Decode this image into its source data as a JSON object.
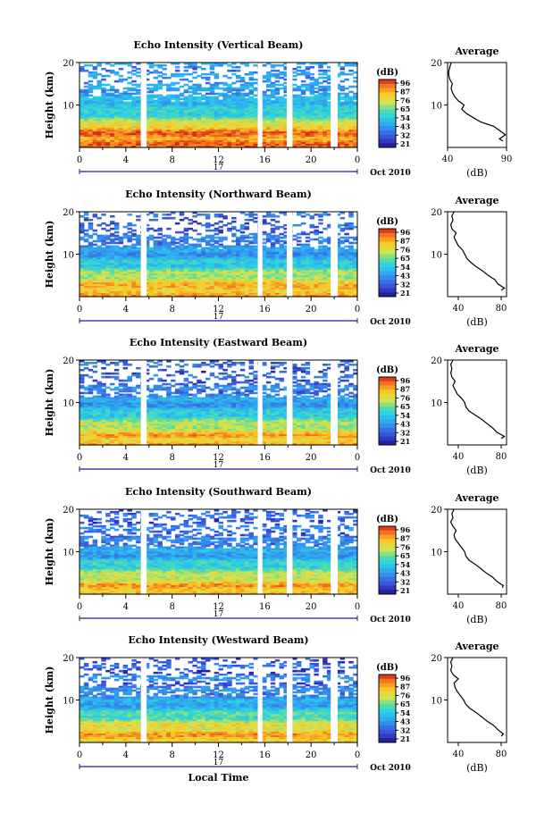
{
  "chart_data": [
    {
      "type": "heatmap",
      "title": "Echo Intensity (Vertical Beam)",
      "ylabel": "Height (km)",
      "ylim": [
        0,
        20
      ],
      "yticks": [
        "20",
        "10"
      ],
      "xlim": [
        0,
        24
      ],
      "xticks": [
        "0",
        "4",
        "8",
        "12",
        "16",
        "20",
        "0"
      ],
      "day_label": "17",
      "date_label": "Oct 2010",
      "colorbar": {
        "unit": "(dB)",
        "ticks": [
          "96",
          "87",
          "76",
          "65",
          "54",
          "43",
          "32",
          "21"
        ]
      },
      "data_gaps_hours": [
        [
          5.3,
          5.8
        ],
        [
          15.4,
          15.8
        ],
        [
          17.9,
          18.4
        ],
        [
          21.7,
          22.3
        ]
      ],
      "average": {
        "title": "Average",
        "xlabel": "(dB)",
        "xticks": [
          "40",
          "90"
        ],
        "xlim": [
          40,
          90
        ],
        "height_km": [
          1.5,
          2,
          3,
          4,
          5,
          6,
          7,
          8,
          9,
          10,
          11,
          12,
          13,
          14,
          15,
          16,
          17,
          18,
          19,
          20
        ],
        "value_db": [
          87,
          84,
          89,
          84,
          79,
          68,
          62,
          56,
          52,
          54,
          49,
          46,
          44,
          43,
          44,
          42,
          41,
          41,
          42,
          43
        ]
      }
    },
    {
      "type": "heatmap",
      "title": "Echo Intensity (Northward Beam)",
      "ylabel": "Height (km)",
      "ylim": [
        0,
        20
      ],
      "yticks": [
        "20",
        "10"
      ],
      "xlim": [
        0,
        24
      ],
      "xticks": [
        "0",
        "4",
        "8",
        "12",
        "16",
        "20",
        "0"
      ],
      "day_label": "17",
      "date_label": "Oct 2010",
      "colorbar": {
        "unit": "(dB)",
        "ticks": [
          "96",
          "87",
          "76",
          "65",
          "54",
          "43",
          "32",
          "21"
        ]
      },
      "data_gaps_hours": [
        [
          5.3,
          5.8
        ],
        [
          15.4,
          15.8
        ],
        [
          17.9,
          18.4
        ],
        [
          21.7,
          22.3
        ]
      ],
      "average": {
        "title": "Average",
        "xlabel": "(dB)",
        "xticks": [
          "40",
          "80"
        ],
        "xlim": [
          30,
          85
        ],
        "height_km": [
          1.5,
          2,
          3,
          4,
          5,
          6,
          7,
          8,
          9,
          10,
          11,
          12,
          13,
          14,
          15,
          16,
          17,
          18,
          19,
          20
        ],
        "value_db": [
          80,
          83,
          77,
          74,
          68,
          63,
          57,
          52,
          48,
          46,
          44,
          40,
          38,
          36,
          38,
          34,
          33,
          35,
          34,
          36
        ]
      }
    },
    {
      "type": "heatmap",
      "title": "Echo Intensity (Eastward Beam)",
      "ylabel": "Height (km)",
      "ylim": [
        0,
        20
      ],
      "yticks": [
        "20",
        "10"
      ],
      "xlim": [
        0,
        24
      ],
      "xticks": [
        "0",
        "4",
        "8",
        "12",
        "16",
        "20",
        "0"
      ],
      "day_label": "17",
      "date_label": "Oct 2010",
      "colorbar": {
        "unit": "(dB)",
        "ticks": [
          "96",
          "87",
          "76",
          "65",
          "54",
          "43",
          "32",
          "21"
        ]
      },
      "data_gaps_hours": [
        [
          5.3,
          5.8
        ],
        [
          15.4,
          15.8
        ],
        [
          17.9,
          18.4
        ],
        [
          21.7,
          22.3
        ]
      ],
      "average": {
        "title": "Average",
        "xlabel": "(dB)",
        "xticks": [
          "40",
          "80"
        ],
        "xlim": [
          30,
          85
        ],
        "height_km": [
          1.5,
          2,
          3,
          4,
          5,
          6,
          7,
          8,
          9,
          10,
          11,
          12,
          13,
          14,
          15,
          16,
          17,
          18,
          19,
          20
        ],
        "value_db": [
          80,
          83,
          76,
          72,
          67,
          62,
          56,
          50,
          47,
          46,
          43,
          39,
          37,
          35,
          37,
          34,
          33,
          34,
          33,
          35
        ]
      }
    },
    {
      "type": "heatmap",
      "title": "Echo Intensity (Southward Beam)",
      "ylabel": "Height (km)",
      "ylim": [
        0,
        20
      ],
      "yticks": [
        "20",
        "10"
      ],
      "xlim": [
        0,
        24
      ],
      "xticks": [
        "0",
        "4",
        "8",
        "12",
        "16",
        "20",
        "0"
      ],
      "day_label": "17",
      "date_label": "Oct 2010",
      "colorbar": {
        "unit": "(dB)",
        "ticks": [
          "96",
          "87",
          "76",
          "65",
          "54",
          "43",
          "32",
          "21"
        ]
      },
      "data_gaps_hours": [
        [
          5.3,
          5.8
        ],
        [
          15.4,
          15.8
        ],
        [
          17.9,
          18.4
        ],
        [
          21.7,
          22.3
        ]
      ],
      "average": {
        "title": "Average",
        "xlabel": "(dB)",
        "xticks": [
          "40",
          "80"
        ],
        "xlim": [
          30,
          85
        ],
        "height_km": [
          1.5,
          2,
          3,
          4,
          5,
          6,
          7,
          8,
          9,
          10,
          11,
          12,
          13,
          14,
          15,
          16,
          17,
          18,
          19,
          20
        ],
        "value_db": [
          81,
          82,
          76,
          72,
          66,
          61,
          56,
          50,
          47,
          46,
          43,
          40,
          37,
          36,
          38,
          35,
          33,
          35,
          34,
          36
        ]
      }
    },
    {
      "type": "heatmap",
      "title": "Echo Intensity (Westward Beam)",
      "ylabel": "Height (km)",
      "ylim": [
        0,
        20
      ],
      "yticks": [
        "20",
        "10"
      ],
      "xlim": [
        0,
        24
      ],
      "xticks": [
        "0",
        "4",
        "8",
        "12",
        "16",
        "20",
        "0"
      ],
      "day_label": "17",
      "date_label": "Oct 2010",
      "xlabel": "Local Time",
      "colorbar": {
        "unit": "(dB)",
        "ticks": [
          "96",
          "87",
          "76",
          "65",
          "54",
          "43",
          "32",
          "21"
        ]
      },
      "data_gaps_hours": [
        [
          5.3,
          5.8
        ],
        [
          15.4,
          15.8
        ],
        [
          17.9,
          18.4
        ],
        [
          21.7,
          22.3
        ]
      ],
      "average": {
        "title": "Average",
        "xlabel": "(dB)",
        "xticks": [
          "40",
          "80"
        ],
        "xlim": [
          30,
          85
        ],
        "height_km": [
          1.5,
          2,
          3,
          4,
          5,
          6,
          7,
          8,
          9,
          10,
          11,
          12,
          13,
          14,
          15,
          16,
          17,
          18,
          19,
          20
        ],
        "value_db": [
          80,
          82,
          77,
          73,
          67,
          62,
          57,
          51,
          47,
          45,
          42,
          39,
          37,
          36,
          40,
          35,
          33,
          34,
          33,
          35
        ]
      }
    }
  ]
}
